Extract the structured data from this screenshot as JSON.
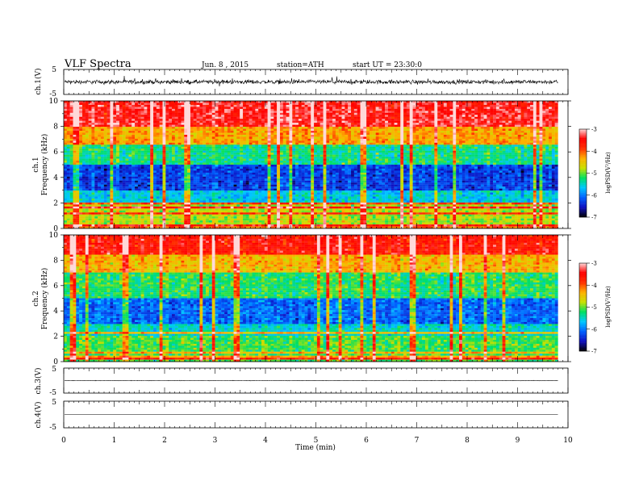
{
  "header": {
    "title": "VLF Spectra",
    "date": "Jun. 8 , 2015",
    "station": "station=ATH",
    "start": "start UT = 23:30:0"
  },
  "chart_data": [
    {
      "type": "line",
      "panel": "ch1-waveform",
      "ylabel": "ch.1(V)",
      "ylim": [
        -5,
        5
      ],
      "yticks": [
        "5",
        "-5"
      ],
      "description_values": {
        "baseline": 0,
        "typical_amplitude": 1.2,
        "peak_amplitude": 2.5
      }
    },
    {
      "type": "heatmap",
      "panel": "ch1-spectrogram",
      "ylabel": "ch.1\nFrequency (kHz)",
      "ylabel_lines": [
        "ch.1",
        "Frequency (kHz)"
      ],
      "ylim": [
        0,
        10
      ],
      "yticks": [
        "0",
        "2",
        "4",
        "6",
        "8",
        "10"
      ],
      "colorbar": {
        "label": "logPSD(V²/Hz)",
        "range": [
          -7,
          -3
        ],
        "ticks": [
          "-3",
          "-4",
          "-5",
          "-6",
          "-7"
        ]
      },
      "band_levels_logPSD": [
        {
          "freq_kHz": [
            0,
            2
          ],
          "level": -4.8
        },
        {
          "freq_kHz": [
            2,
            3
          ],
          "level": -5.6
        },
        {
          "freq_kHz": [
            3,
            5
          ],
          "level": -6.3
        },
        {
          "freq_kHz": [
            5,
            6.5
          ],
          "level": -5.3
        },
        {
          "freq_kHz": [
            6.5,
            8
          ],
          "level": -4.3
        },
        {
          "freq_kHz": [
            8,
            10
          ],
          "level": -3.4
        }
      ]
    },
    {
      "type": "heatmap",
      "panel": "ch2-spectrogram",
      "ylabel_lines": [
        "ch.2",
        "Frequency (kHz)"
      ],
      "ylim": [
        0,
        10
      ],
      "yticks": [
        "0",
        "2",
        "4",
        "6",
        "8",
        "10"
      ],
      "colorbar": {
        "label": "logPSD(V²/Hz)",
        "range": [
          -7,
          -3
        ],
        "ticks": [
          "-3",
          "-4",
          "-5",
          "-6",
          "-7"
        ]
      },
      "band_levels_logPSD": [
        {
          "freq_kHz": [
            0,
            2
          ],
          "level": -5.1
        },
        {
          "freq_kHz": [
            2,
            3
          ],
          "level": -5.5
        },
        {
          "freq_kHz": [
            3,
            5
          ],
          "level": -6.1
        },
        {
          "freq_kHz": [
            5,
            7
          ],
          "level": -5.2
        },
        {
          "freq_kHz": [
            7,
            8.5
          ],
          "level": -4.4
        },
        {
          "freq_kHz": [
            8.5,
            10
          ],
          "level": -3.6
        }
      ]
    },
    {
      "type": "line",
      "panel": "ch3-waveform",
      "ylabel": "ch.3(V)",
      "ylim": [
        -5,
        5
      ],
      "yticks": [
        "5",
        "-5"
      ],
      "description_values": {
        "baseline": 0,
        "typical_amplitude": 0.05
      }
    },
    {
      "type": "line",
      "panel": "ch4-waveform",
      "ylabel": "ch.4(V)",
      "ylim": [
        -5,
        5
      ],
      "yticks": [
        "5",
        "-5"
      ],
      "description_values": {
        "baseline": 0,
        "typical_amplitude": 0
      }
    }
  ],
  "xaxis": {
    "label": "Time (min)",
    "range": [
      0,
      10
    ],
    "data_end": 9.8,
    "ticks": [
      "0",
      "1",
      "2",
      "3",
      "4",
      "5",
      "6",
      "7",
      "8",
      "9",
      "10"
    ]
  },
  "colors": {
    "colormap": [
      "#000000",
      "#1010c0",
      "#0060ff",
      "#00c8ff",
      "#00e060",
      "#c8e000",
      "#ffb000",
      "#ff3000",
      "#ff0000",
      "#ffd8d8"
    ]
  }
}
